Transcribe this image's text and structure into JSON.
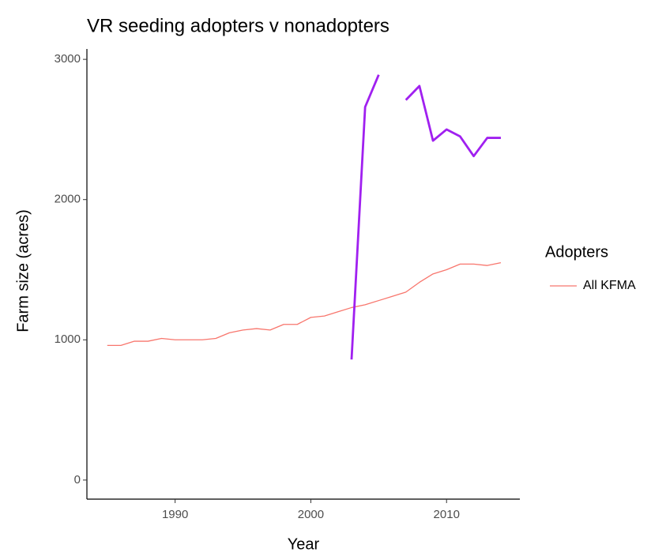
{
  "chart_data": {
    "type": "line",
    "title": "VR seeding adopters v nonadopters",
    "x_label": "Year",
    "y_label": "Farm size (acres)",
    "legend_title": "Adopters",
    "x": [
      1985,
      1986,
      1987,
      1988,
      1989,
      1990,
      1991,
      1992,
      1993,
      1994,
      1995,
      1996,
      1997,
      1998,
      1999,
      2000,
      2001,
      2002,
      2003,
      2004,
      2005,
      2006,
      2007,
      2008,
      2009,
      2010,
      2011,
      2012,
      2013,
      2014
    ],
    "series": [
      {
        "name": "All KFMA",
        "color": "#F8766D",
        "values": [
          960,
          960,
          990,
          990,
          1010,
          1000,
          1000,
          1000,
          1010,
          1050,
          1070,
          1080,
          1070,
          1110,
          1110,
          1160,
          1170,
          1200,
          1230,
          1250,
          1280,
          1310,
          1340,
          1410,
          1470,
          1500,
          1540,
          1540,
          1530,
          1550
        ]
      },
      {
        "color": "#A020F0",
        "values": [
          null,
          null,
          null,
          null,
          null,
          null,
          null,
          null,
          null,
          null,
          null,
          null,
          null,
          null,
          null,
          null,
          null,
          null,
          860,
          2660,
          2890,
          null,
          2710,
          2810,
          2420,
          2500,
          2450,
          2310,
          2440,
          2440
        ]
      }
    ],
    "xlim": [
      1983.5,
      2015.4
    ],
    "xticks": [
      1990,
      2000,
      2010
    ],
    "ylim": [
      -136,
      3074
    ],
    "yticks": [
      0,
      1000,
      2000,
      3000
    ],
    "grid": false,
    "legend": "right"
  }
}
